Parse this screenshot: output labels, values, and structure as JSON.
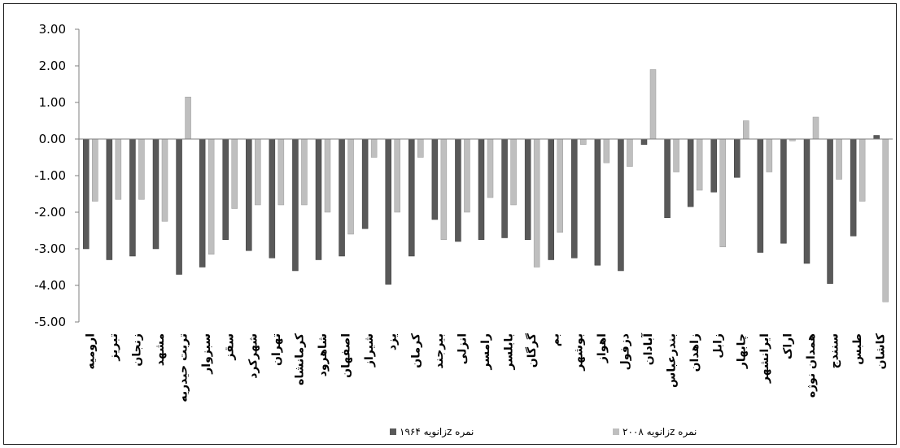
{
  "chart_data": {
    "type": "bar",
    "title": "",
    "xlabel": "",
    "ylabel": "",
    "ylim": [
      -5,
      3
    ],
    "yticks": [
      "3.00",
      "2.00",
      "1.00",
      "0.00",
      "-1.00",
      "-2.00",
      "-3.00",
      "-4.00",
      "-5.00"
    ],
    "ytick_values": [
      3,
      2,
      1,
      0,
      -1,
      -2,
      -3,
      -4,
      -5
    ],
    "grid": false,
    "legend_position": "bottom",
    "categories": [
      "ارومیه",
      "تبریز",
      "زنجان",
      "مشهد",
      "تربت حیدریه",
      "سبزوار",
      "سقز",
      "شهرکرد",
      "تهران",
      "کرمانشاه",
      "شاهرود",
      "اصفهان",
      "شیراز",
      "یزد",
      "کرمان",
      "بیرجند",
      "انزلی",
      "رامسر",
      "بابلسر",
      "گرگان",
      "بم",
      "بوشهر",
      "اهواز",
      "دزفول",
      "آبادان",
      "بندرعباس",
      "زاهدان",
      "زابل",
      "چابهار",
      "ایرانشهر",
      "اراک",
      "همدان نوژه",
      "سنندج",
      "طبس",
      "کاشان"
    ],
    "series": [
      {
        "name": "نمره zزانویه ۱۹۶۴",
        "color": "#595959",
        "values": [
          -3.0,
          -3.3,
          -3.2,
          -3.0,
          -3.7,
          -3.5,
          -2.75,
          -3.05,
          -3.25,
          -3.6,
          -3.3,
          -3.2,
          -2.45,
          -3.97,
          -3.2,
          -2.2,
          -2.8,
          -2.75,
          -2.7,
          -2.75,
          -3.3,
          -3.25,
          -3.45,
          -3.6,
          -0.15,
          -2.15,
          -1.85,
          -1.45,
          -1.05,
          -3.1,
          -2.85,
          -3.4,
          -3.95,
          -2.65,
          0.1
        ]
      },
      {
        "name": "نمره zزانویه ۲۰۰۸",
        "color": "#bfbfbf",
        "values": [
          -1.7,
          -1.65,
          -1.65,
          -2.25,
          1.15,
          -3.15,
          -1.9,
          -1.8,
          -1.8,
          -1.8,
          -2.0,
          -2.6,
          -0.5,
          -2.0,
          -0.5,
          -2.75,
          -2.0,
          -1.6,
          -1.8,
          -3.5,
          -2.55,
          -0.15,
          -0.65,
          -0.75,
          1.9,
          -0.9,
          -1.4,
          -2.95,
          0.5,
          -0.9,
          -0.05,
          0.6,
          -1.1,
          -1.7,
          -4.45
        ]
      }
    ]
  }
}
